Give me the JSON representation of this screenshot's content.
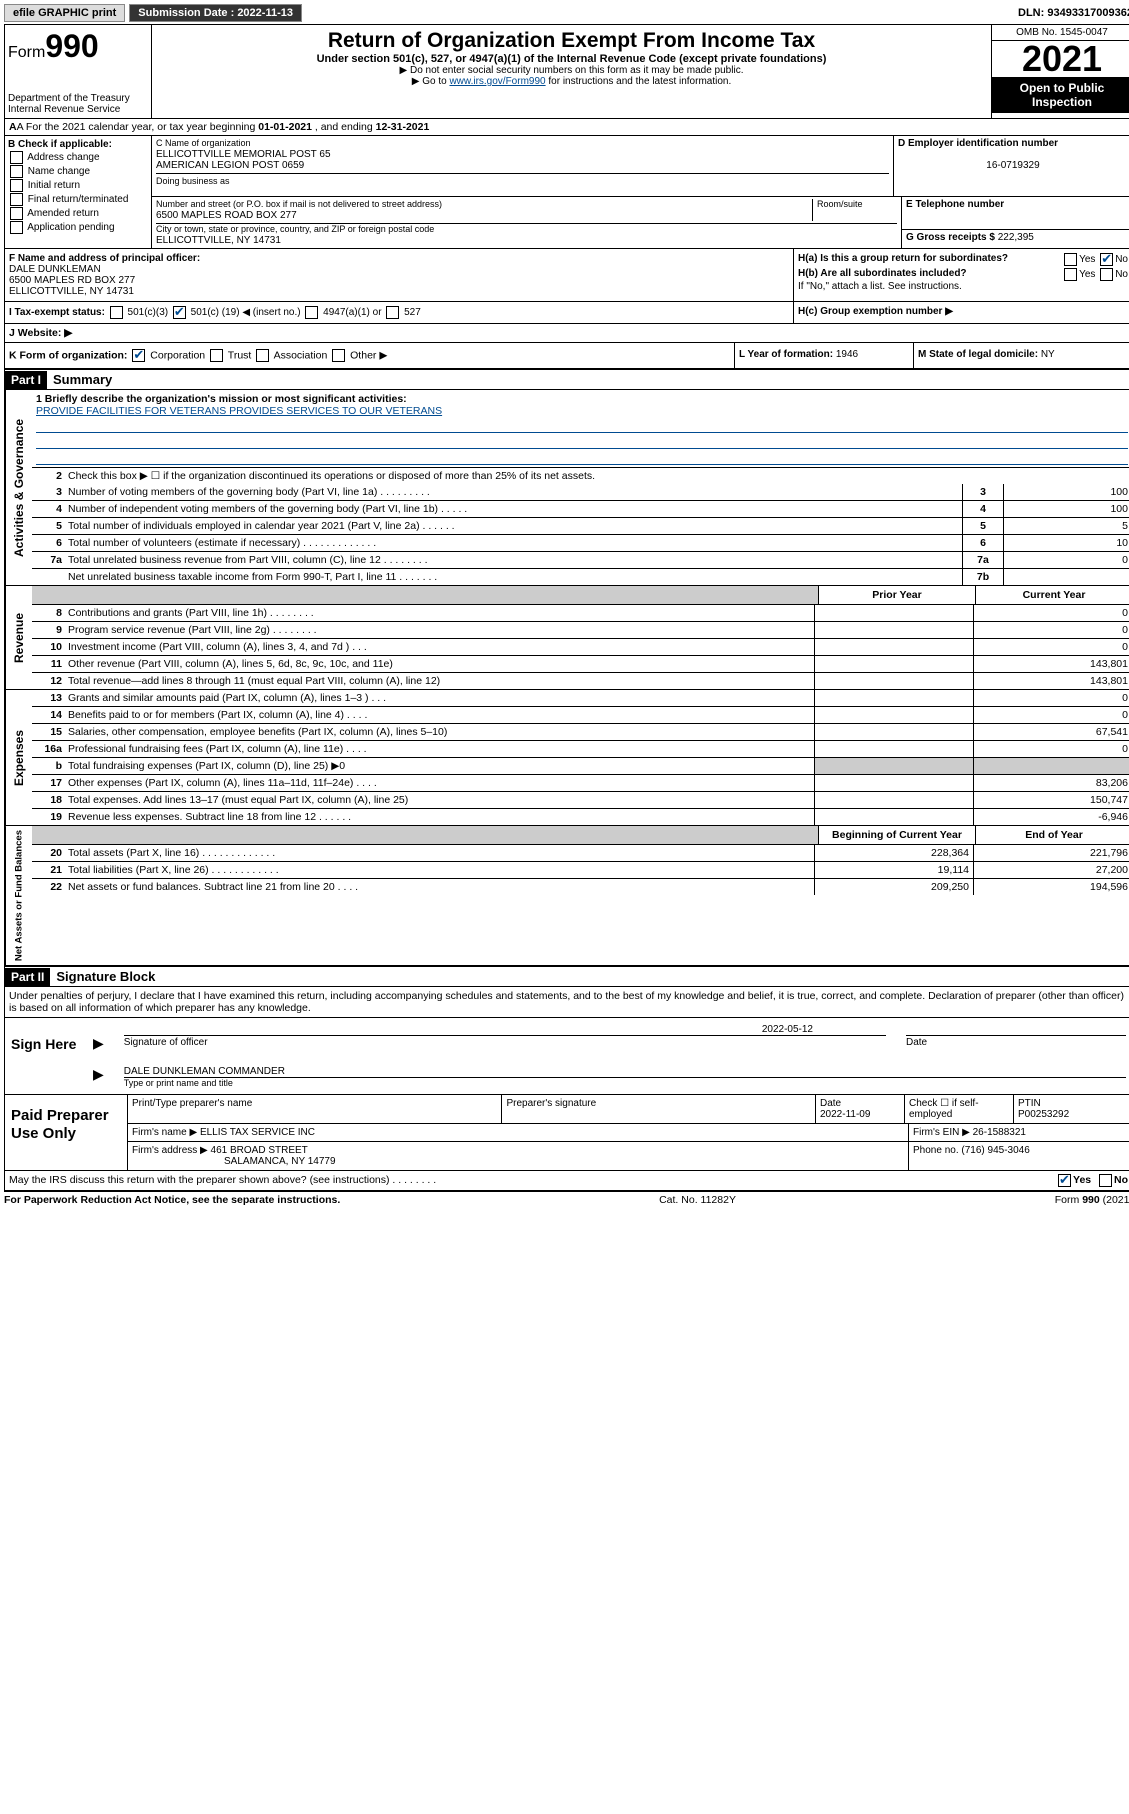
{
  "topbar": {
    "efile": "efile GRAPHIC print",
    "submission_label": "Submission Date : 2022-11-13",
    "dln_label": "DLN: 93493317009362"
  },
  "header": {
    "form_word": "Form",
    "form_num": "990",
    "title": "Return of Organization Exempt From Income Tax",
    "sub": "Under section 501(c), 527, or 4947(a)(1) of the Internal Revenue Code (except private foundations)",
    "note1": "▶ Do not enter social security numbers on this form as it may be made public.",
    "note2_pre": "▶ Go to ",
    "note2_link": "www.irs.gov/Form990",
    "note2_post": " for instructions and the latest information.",
    "dept": "Department of the Treasury",
    "irs": "Internal Revenue Service",
    "omb": "OMB No. 1545-0047",
    "year": "2021",
    "inspection": "Open to Public Inspection"
  },
  "line_a": {
    "text_pre": "A For the 2021 calendar year, or tax year beginning ",
    "begin": "01-01-2021",
    "mid": " , and ending ",
    "end": "12-31-2021"
  },
  "section_b": {
    "label": "B Check if applicable:",
    "opts": [
      "Address change",
      "Name change",
      "Initial return",
      "Final return/terminated",
      "Amended return",
      "Application pending"
    ]
  },
  "section_c": {
    "label": "C Name of organization",
    "name1": "ELLICOTTVILLE MEMORIAL POST 65",
    "name2": "AMERICAN LEGION POST 0659",
    "dba_label": "Doing business as",
    "addr_label": "Number and street (or P.O. box if mail is not delivered to street address)",
    "room_label": "Room/suite",
    "addr": "6500 MAPLES ROAD BOX 277",
    "city_label": "City or town, state or province, country, and ZIP or foreign postal code",
    "city": "ELLICOTTVILLE, NY  14731"
  },
  "section_d": {
    "label": "D Employer identification number",
    "val": "16-0719329"
  },
  "section_e": {
    "label": "E Telephone number",
    "val": ""
  },
  "section_g": {
    "label": "G Gross receipts $",
    "val": "222,395"
  },
  "section_f": {
    "label": "F Name and address of principal officer:",
    "name": "DALE DUNKLEMAN",
    "addr": "6500 MAPLES RD BOX 277",
    "city": "ELLICOTTVILLE, NY  14731"
  },
  "section_h": {
    "ha": "H(a)  Is this a group return for subordinates?",
    "hb": "H(b)  Are all subordinates included?",
    "hb_note": "If \"No,\" attach a list. See instructions.",
    "hc": "H(c)  Group exemption number ▶",
    "yes": "Yes",
    "no": "No"
  },
  "line_i": {
    "label": "I   Tax-exempt status:",
    "c3": "501(c)(3)",
    "c_pre": "501(c) (",
    "c_num": "19",
    "c_post": ") ◀ (insert no.)",
    "a1": "4947(a)(1) or",
    "s527": "527"
  },
  "line_j": {
    "label": "J   Website: ▶",
    "val": ""
  },
  "line_k": {
    "label": "K Form of organization:",
    "corp": "Corporation",
    "trust": "Trust",
    "assoc": "Association",
    "other": "Other ▶"
  },
  "line_l": {
    "label": "L Year of formation:",
    "val": "1946"
  },
  "line_m": {
    "label": "M State of legal domicile:",
    "val": "NY"
  },
  "part1": {
    "tag": "Part I",
    "title": "Summary"
  },
  "mission": {
    "label": "1   Briefly describe the organization's mission or most significant activities:",
    "text": "PROVIDE FACILITIES FOR VETERANS PROVIDES SERVICES TO OUR VETERANS"
  },
  "gov_lines": {
    "l2": "Check this box ▶ ☐  if the organization discontinued its operations or disposed of more than 25% of its net assets.",
    "l3": {
      "t": "Number of voting members of the governing body (Part VI, line 1a)  .    .    .    .    .    .    .    .    .",
      "n": "3",
      "v": "100"
    },
    "l4": {
      "t": "Number of independent voting members of the governing body (Part VI, line 1b)  .    .    .    .    .",
      "n": "4",
      "v": "100"
    },
    "l5": {
      "t": "Total number of individuals employed in calendar year 2021 (Part V, line 2a)  .    .    .    .    .    .",
      "n": "5",
      "v": "5"
    },
    "l6": {
      "t": "Total number of volunteers (estimate if necessary)   .    .    .    .    .    .    .    .    .    .    .    .    .",
      "n": "6",
      "v": "10"
    },
    "l7a": {
      "t": "Total unrelated business revenue from Part VIII, column (C), line 12  .    .    .    .    .    .    .    .",
      "pre": "7a",
      "n": "7a",
      "v": "0"
    },
    "l7b": {
      "t": "Net unrelated business taxable income from Form 990-T, Part I, line 11   .    .    .    .    .    .    .",
      "n": "7b",
      "v": ""
    }
  },
  "col_headers_py": "Prior Year",
  "col_headers_cy": "Current Year",
  "rev_lines": [
    {
      "n": "8",
      "t": "Contributions and grants (Part VIII, line 1h)  .    .    .    .    .    .    .    .",
      "py": "",
      "cy": "0"
    },
    {
      "n": "9",
      "t": "Program service revenue (Part VIII, line 2g)  .    .    .    .    .    .    .    .",
      "py": "",
      "cy": "0"
    },
    {
      "n": "10",
      "t": "Investment income (Part VIII, column (A), lines 3, 4, and 7d )  .    .    .",
      "py": "",
      "cy": "0"
    },
    {
      "n": "11",
      "t": "Other revenue (Part VIII, column (A), lines 5, 6d, 8c, 9c, 10c, and 11e)",
      "py": "",
      "cy": "143,801"
    },
    {
      "n": "12",
      "t": "Total revenue—add lines 8 through 11 (must equal Part VIII, column (A), line 12)",
      "py": "",
      "cy": "143,801"
    }
  ],
  "exp_lines": [
    {
      "n": "13",
      "t": "Grants and similar amounts paid (Part IX, column (A), lines 1–3 )  .    .    .",
      "py": "",
      "cy": "0"
    },
    {
      "n": "14",
      "t": "Benefits paid to or for members (Part IX, column (A), line 4)  .    .    .    .",
      "py": "",
      "cy": "0"
    },
    {
      "n": "15",
      "t": "Salaries, other compensation, employee benefits (Part IX, column (A), lines 5–10)",
      "py": "",
      "cy": "67,541"
    },
    {
      "n": "16a",
      "t": "Professional fundraising fees (Part IX, column (A), line 11e)  .    .    .    .",
      "py": "",
      "cy": "0"
    },
    {
      "n": "b",
      "t": "Total fundraising expenses (Part IX, column (D), line 25) ▶0",
      "py": "shade",
      "cy": "shade"
    },
    {
      "n": "17",
      "t": "Other expenses (Part IX, column (A), lines 11a–11d, 11f–24e)  .    .    .    .",
      "py": "",
      "cy": "83,206"
    },
    {
      "n": "18",
      "t": "Total expenses. Add lines 13–17 (must equal Part IX, column (A), line 25)",
      "py": "",
      "cy": "150,747"
    },
    {
      "n": "19",
      "t": "Revenue less expenses. Subtract line 18 from line 12   .    .    .    .    .    .",
      "py": "",
      "cy": "-6,946"
    }
  ],
  "na_header_b": "Beginning of Current Year",
  "na_header_e": "End of Year",
  "na_lines": [
    {
      "n": "20",
      "t": "Total assets (Part X, line 16)  .    .    .    .    .    .    .    .    .    .    .    .    .",
      "b": "228,364",
      "e": "221,796"
    },
    {
      "n": "21",
      "t": "Total liabilities (Part X, line 26)  .    .    .    .    .    .    .    .    .    .    .    .",
      "b": "19,114",
      "e": "27,200"
    },
    {
      "n": "22",
      "t": "Net assets or fund balances. Subtract line 21 from line 20  .    .    .    .",
      "b": "209,250",
      "e": "194,596"
    }
  ],
  "vtabs": {
    "gov": "Activities & Governance",
    "rev": "Revenue",
    "exp": "Expenses",
    "na": "Net Assets or Fund Balances"
  },
  "part2": {
    "tag": "Part II",
    "title": "Signature Block"
  },
  "sig_decl": "Under penalties of perjury, I declare that I have examined this return, including accompanying schedules and statements, and to the best of my knowledge and belief, it is true, correct, and complete. Declaration of preparer (other than officer) is based on all information of which preparer has any knowledge.",
  "sign": {
    "here": "Sign Here",
    "sig_of_officer": "Signature of officer",
    "date_label": "Date",
    "date": "2022-05-12",
    "name": "DALE DUNKLEMAN COMMANDER",
    "name_label": "Type or print name and title"
  },
  "prep": {
    "title": "Paid Preparer Use Only",
    "h1": "Print/Type preparer's name",
    "h2": "Preparer's signature",
    "h3": "Date",
    "date": "2022-11-09",
    "h4": "Check ☐ if self-employed",
    "h5": "PTIN",
    "ptin": "P00253292",
    "firm_name_l": "Firm's name    ▶",
    "firm_name": "ELLIS TAX SERVICE INC",
    "firm_ein_l": "Firm's EIN ▶",
    "firm_ein": "26-1588321",
    "firm_addr_l": "Firm's address ▶",
    "firm_addr": "461 BROAD STREET",
    "firm_city": "SALAMANCA, NY 14779",
    "phone_l": "Phone no.",
    "phone": "(716) 945-3046"
  },
  "discuss": {
    "text": "May the IRS discuss this return with the preparer shown above? (see instructions)   .    .    .    .    .    .    .    .",
    "yes": "Yes",
    "no": "No"
  },
  "footer": {
    "left": "For Paperwork Reduction Act Notice, see the separate instructions.",
    "mid": "Cat. No. 11282Y",
    "right_pre": "Form ",
    "right_b": "990",
    "right_post": " (2021)"
  }
}
